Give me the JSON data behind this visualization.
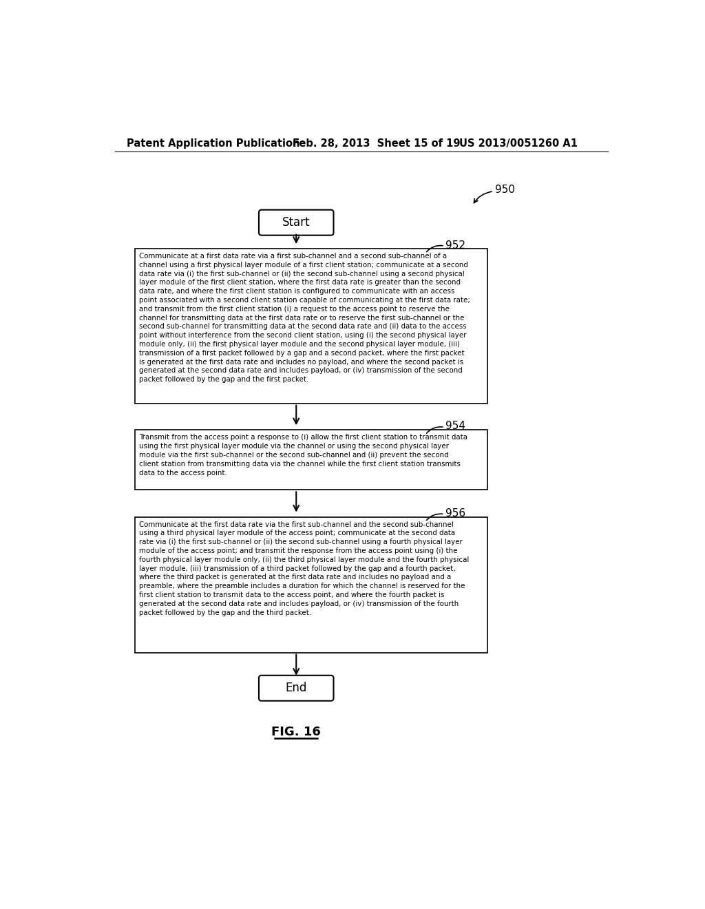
{
  "header_left": "Patent Application Publication",
  "header_mid": "Feb. 28, 2013  Sheet 15 of 19",
  "header_right": "US 2013/0051260 A1",
  "fig_label": "FIG. 16",
  "start_label": "Start",
  "end_label": "End",
  "label_950": "950",
  "label_952": "952",
  "label_954": "954",
  "label_956": "956",
  "box952_text": "Communicate at a first data rate via a first sub-channel and a second sub-channel of a\nchannel using a first physical layer module of a first client station; communicate at a second\ndata rate via (i) the first sub-channel or (ii) the second sub-channel using a second physical\nlayer module of the first client station, where the first data rate is greater than the second\ndata rate, and where the first client station is configured to communicate with an access\npoint associated with a second client station capable of communicating at the first data rate;\nand transmit from the first client station (i) a request to the access point to reserve the\nchannel for transmitting data at the first data rate or to reserve the first sub-channel or the\nsecond sub-channel for transmitting data at the second data rate and (ii) data to the access\npoint without interference from the second client station, using (i) the second physical layer\nmodule only, (ii) the first physical layer module and the second physical layer module, (iii)\ntransmission of a first packet followed by a gap and a second packet, where the first packet\nis generated at the first data rate and includes no payload, and where the second packet is\ngenerated at the second data rate and includes payload, or (iv) transmission of the second\npacket followed by the gap and the first packet.",
  "box954_text": "Transmit from the access point a response to (i) allow the first client station to transmit data\nusing the first physical layer module via the channel or using the second physical layer\nmodule via the first sub-channel or the second sub-channel and (ii) prevent the second\nclient station from transmitting data via the channel while the first client station transmits\ndata to the access point.",
  "box956_text": "Communicate at the first data rate via the first sub-channel and the second sub-channel\nusing a third physical layer module of the access point; communicate at the second data\nrate via (i) the first sub-channel or (ii) the second sub-channel using a fourth physical layer\nmodule of the access point; and transmit the response from the access point using (i) the\nfourth physical layer module only, (ii) the third physical layer module and the fourth physical\nlayer module, (iii) transmission of a third packet followed by the gap and a fourth packet,\nwhere the third packet is generated at the first data rate and includes no payload and a\npreamble, where the preamble includes a duration for which the channel is reserved for the\nfirst client station to transmit data to the access point, and where the fourth packet is\ngenerated at the second data rate and includes payload, or (iv) transmission of the fourth\npacket followed by the gap and the third packet.",
  "bg_color": "#ffffff",
  "text_color": "#000000",
  "header_fontsize": 10.5,
  "body_fontsize": 7.4,
  "label_fontsize": 11,
  "fig_fontsize": 13
}
